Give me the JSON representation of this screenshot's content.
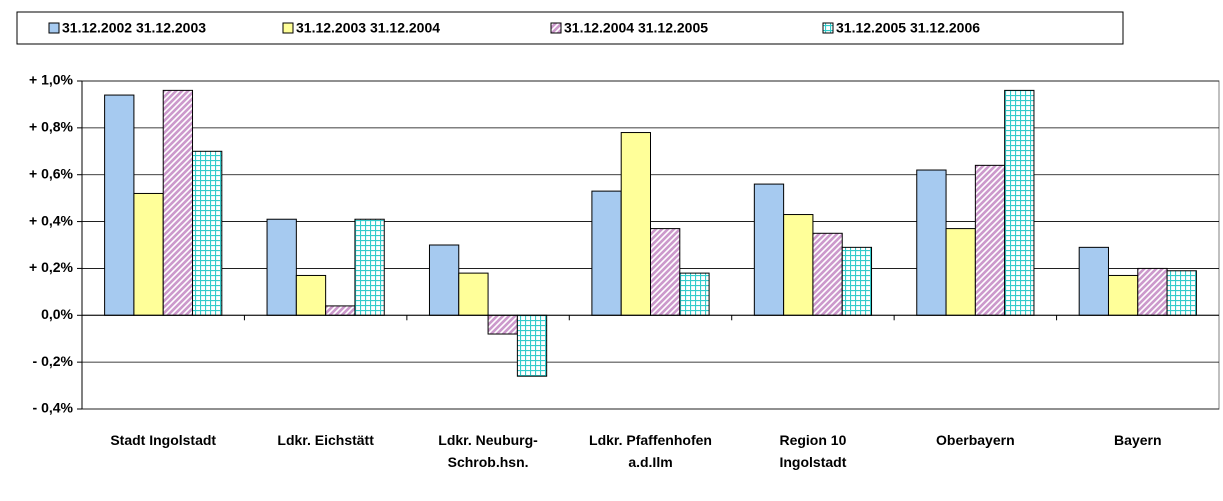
{
  "chart_data": {
    "type": "bar",
    "categories": [
      "Stadt Ingolstadt",
      "Ldkr. Eichstätt",
      "Ldkr. Neuburg-Schrob.hsn.",
      "Ldkr. Pfaffenhofen a.d.Ilm",
      "Region 10 Ingolstadt",
      "Oberbayern",
      "Bayern"
    ],
    "series": [
      {
        "name": "31.12.2002 31.12.2003",
        "color": "#a6caf0",
        "values": [
          0.94,
          0.41,
          0.3,
          0.53,
          0.56,
          0.62,
          0.29
        ]
      },
      {
        "name": "31.12.2003 31.12.2004",
        "color": "#ffff99",
        "values": [
          0.52,
          0.17,
          0.18,
          0.78,
          0.43,
          0.37,
          0.17
        ]
      },
      {
        "name": "31.12.2004 31.12.2005",
        "color": "#cc99cc",
        "values": [
          0.96,
          0.04,
          -0.08,
          0.37,
          0.35,
          0.64,
          0.2
        ]
      },
      {
        "name": "31.12.2005 31.12.2006",
        "color": "#33cccc",
        "values": [
          0.7,
          0.41,
          -0.26,
          0.18,
          0.29,
          0.96,
          0.19
        ]
      }
    ],
    "ylim": [
      -0.4,
      1.0
    ],
    "yticks": [
      {
        "value": -0.4,
        "label": "- 0,4%"
      },
      {
        "value": -0.2,
        "label": "- 0,2%"
      },
      {
        "value": 0,
        "label": "0,0%"
      },
      {
        "value": 0.2,
        "label": "+ 0,2%"
      },
      {
        "value": 0.4,
        "label": "+ 0,4%"
      },
      {
        "value": 0.6,
        "label": "+ 0,6%"
      },
      {
        "value": 0.8,
        "label": "+ 0,8%"
      },
      {
        "value": 1.0,
        "label": "+ 1,0%"
      }
    ],
    "grid": true,
    "legend": "top"
  }
}
